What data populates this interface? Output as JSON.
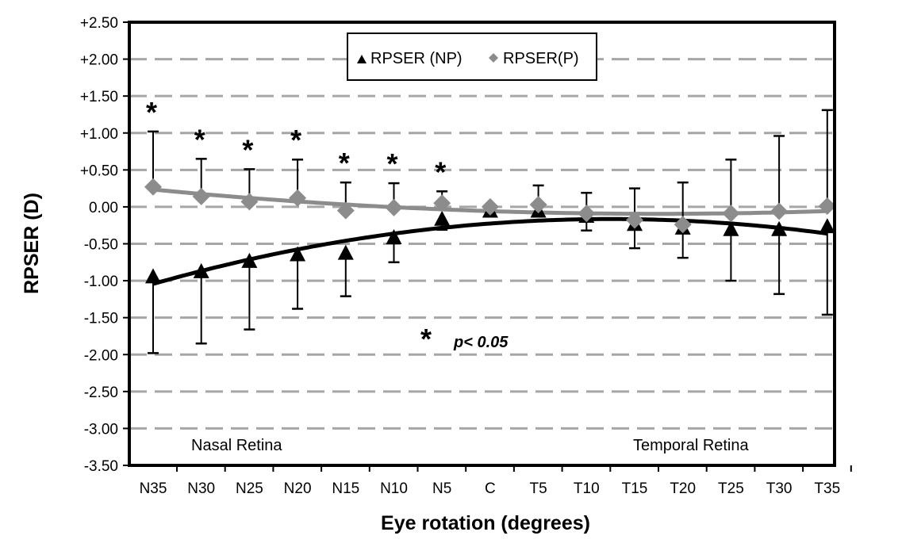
{
  "chart_data": {
    "type": "line",
    "title": "",
    "xlabel": "Eye rotation (degrees)",
    "ylabel": "RPSER (D)",
    "ylim": [
      -3.5,
      2.5
    ],
    "yticks": [
      2.5,
      2.0,
      1.5,
      1.0,
      0.5,
      0.0,
      -0.5,
      -1.0,
      -1.5,
      -2.0,
      -2.5,
      -3.0,
      -3.5
    ],
    "ytick_labels": [
      "+2.50",
      "+2.00",
      "+1.50",
      "+1.00",
      "+0.50",
      "0.00",
      "-0.50",
      "-1.00",
      "-1.50",
      "-2.00",
      "-2.50",
      "-3.00",
      "-3.50"
    ],
    "categories": [
      "N35",
      "N30",
      "N25",
      "N20",
      "N15",
      "N10",
      "N5",
      "C",
      "T5",
      "T10",
      "T15",
      "T20",
      "T25",
      "T30",
      "T35"
    ],
    "grid": "horizontal dashed",
    "legend_placement": "top-center",
    "series": [
      {
        "name": "RPSER (NP)",
        "marker": "triangle",
        "color": "#000000",
        "values": [
          -0.95,
          -0.88,
          -0.74,
          -0.65,
          -0.63,
          -0.42,
          -0.17,
          -0.06,
          -0.06,
          -0.13,
          -0.24,
          -0.29,
          -0.31,
          -0.31,
          -0.27
        ],
        "error_lower": [
          -1.98,
          -1.85,
          -1.66,
          -1.38,
          -1.21,
          -0.75,
          -0.31,
          -0.09,
          -0.1,
          -0.32,
          -0.56,
          -0.69,
          -1.0,
          -1.18,
          -1.46
        ],
        "trendline": "polynomial"
      },
      {
        "name": "RPSER(P)",
        "marker": "diamond",
        "color": "#8c8c8c",
        "values": [
          0.27,
          0.14,
          0.07,
          0.12,
          -0.05,
          -0.01,
          0.05,
          0.0,
          0.03,
          -0.09,
          -0.18,
          -0.24,
          -0.09,
          -0.06,
          0.01
        ],
        "error_upper": [
          1.02,
          0.65,
          0.51,
          0.64,
          0.33,
          0.32,
          0.21,
          0.0,
          0.29,
          0.19,
          0.25,
          0.33,
          0.64,
          0.96,
          1.31
        ],
        "trendline": "polynomial"
      }
    ],
    "significant_categories": [
      "N35",
      "N30",
      "N25",
      "N20",
      "N15",
      "N10",
      "N5"
    ],
    "annotations": {
      "asterisk": "*",
      "significance_label": "p< 0.05",
      "nasal": "Nasal Retina",
      "temporal": "Temporal Retina"
    }
  }
}
